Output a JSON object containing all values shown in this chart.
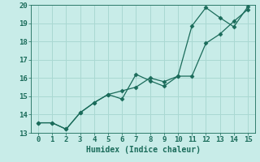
{
  "title": "",
  "xlabel": "Humidex (Indice chaleur)",
  "ylabel": "",
  "bg_color": "#c8ece8",
  "line_color": "#1a6b5a",
  "grid_color": "#aad8d2",
  "xlim": [
    -0.5,
    15.5
  ],
  "ylim": [
    13,
    20
  ],
  "xticks": [
    0,
    1,
    2,
    3,
    4,
    5,
    6,
    7,
    8,
    9,
    10,
    11,
    12,
    13,
    14,
    15
  ],
  "yticks": [
    13,
    14,
    15,
    16,
    17,
    18,
    19,
    20
  ],
  "line1_x": [
    0,
    1,
    2,
    3,
    4,
    5,
    6,
    7,
    8,
    9,
    10,
    11,
    12,
    13,
    14,
    15
  ],
  "line1_y": [
    13.55,
    13.55,
    13.2,
    14.1,
    14.65,
    15.1,
    14.85,
    16.2,
    15.85,
    15.55,
    16.1,
    18.85,
    19.85,
    19.3,
    18.8,
    19.9
  ],
  "line2_x": [
    0,
    1,
    2,
    3,
    4,
    5,
    6,
    7,
    8,
    9,
    10,
    11,
    12,
    13,
    14,
    15
  ],
  "line2_y": [
    13.55,
    13.55,
    13.2,
    14.1,
    14.65,
    15.1,
    15.3,
    15.5,
    16.0,
    15.8,
    16.1,
    16.1,
    17.9,
    18.4,
    19.1,
    19.75
  ],
  "font_size": 7,
  "tick_font_size": 6.5,
  "marker": "D",
  "marker_size": 2.5
}
